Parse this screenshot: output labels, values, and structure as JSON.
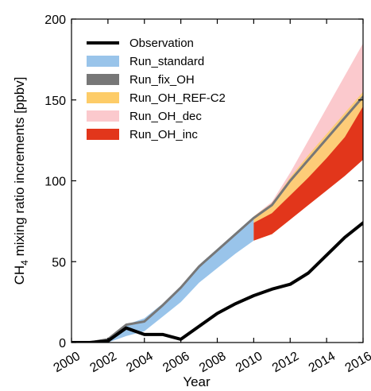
{
  "chart_data": {
    "type": "area",
    "xlabel": "Year",
    "ylabel_prefix": "CH",
    "ylabel_sub": "4",
    "ylabel_suffix": " mixing ratio increments [ppbv]",
    "xlim": [
      2000,
      2016
    ],
    "ylim": [
      0,
      200
    ],
    "xticks": [
      2000,
      2002,
      2004,
      2006,
      2008,
      2010,
      2012,
      2014,
      2016
    ],
    "yticks": [
      0,
      50,
      100,
      150,
      200
    ],
    "legend_position": "top-left",
    "grid": false,
    "colors": {
      "observation": "#000000",
      "run_standard": "#99c4ea",
      "run_fix_oh": "#777777",
      "run_oh_ref_c2": "#fdcc68",
      "run_oh_dec": "#fbc9cd",
      "run_oh_inc": "#e2361b"
    },
    "legend": [
      {
        "key": "observation",
        "label": "Observation",
        "kind": "line"
      },
      {
        "key": "run_standard",
        "label": "Run_standard",
        "kind": "patch"
      },
      {
        "key": "run_fix_oh",
        "label": "Run_fix_OH",
        "kind": "patch"
      },
      {
        "key": "run_oh_ref_c2",
        "label": "Run_OH_REF-C2",
        "kind": "patch"
      },
      {
        "key": "run_oh_dec",
        "label": "Run_OH_dec",
        "kind": "patch"
      },
      {
        "key": "run_oh_inc",
        "label": "Run_OH_inc",
        "kind": "patch"
      }
    ],
    "series": [
      {
        "key": "run_oh_dec",
        "kind": "band",
        "x": [
          2010,
          2011,
          2012,
          2013,
          2014,
          2015,
          2016
        ],
        "lower": [
          63,
          67,
          76,
          86,
          95,
          105,
          115
        ],
        "upper": [
          78,
          87,
          105,
          125,
          145,
          165,
          185
        ]
      },
      {
        "key": "run_standard",
        "kind": "band",
        "x": [
          2000,
          2001,
          2002,
          2003,
          2004,
          2005,
          2006,
          2007,
          2008,
          2009,
          2010
        ],
        "lower": [
          0,
          -1,
          0,
          4,
          7,
          16,
          25,
          37,
          46,
          55,
          63
        ],
        "upper": [
          0,
          0,
          2,
          11,
          15,
          24,
          35,
          48,
          58,
          68,
          78
        ]
      },
      {
        "key": "run_oh_ref_c2",
        "kind": "band",
        "x": [
          2010,
          2011,
          2012,
          2013,
          2014,
          2015,
          2016
        ],
        "lower": [
          63,
          67,
          76,
          86,
          96,
          107,
          118
        ],
        "upper": [
          78,
          86,
          102,
          116,
          129,
          142,
          155
        ]
      },
      {
        "key": "run_oh_inc",
        "kind": "band",
        "x": [
          2010,
          2011,
          2012,
          2013,
          2014,
          2015,
          2016
        ],
        "lower": [
          63,
          67,
          76,
          85,
          94,
          103,
          113
        ],
        "upper": [
          74,
          80,
          91,
          102,
          114,
          127,
          146
        ]
      },
      {
        "key": "run_fix_oh",
        "kind": "line",
        "x": [
          2000,
          2001,
          2002,
          2003,
          2004,
          2005,
          2006,
          2007,
          2008,
          2009,
          2010,
          2011,
          2012,
          2013,
          2014,
          2015,
          2016
        ],
        "y": [
          0,
          0,
          2,
          11,
          13,
          23,
          34,
          47,
          57,
          67,
          77,
          85,
          100,
          113,
          126,
          139,
          152
        ]
      },
      {
        "key": "observation",
        "kind": "line",
        "x": [
          2000,
          2001,
          2002,
          2003,
          2004,
          2005,
          2006,
          2007,
          2008,
          2009,
          2010,
          2011,
          2012,
          2013,
          2014,
          2015,
          2016
        ],
        "y": [
          0,
          0,
          1,
          9,
          5,
          5,
          2,
          10,
          18,
          24,
          29,
          33,
          36,
          43,
          54,
          65,
          74
        ]
      }
    ]
  }
}
